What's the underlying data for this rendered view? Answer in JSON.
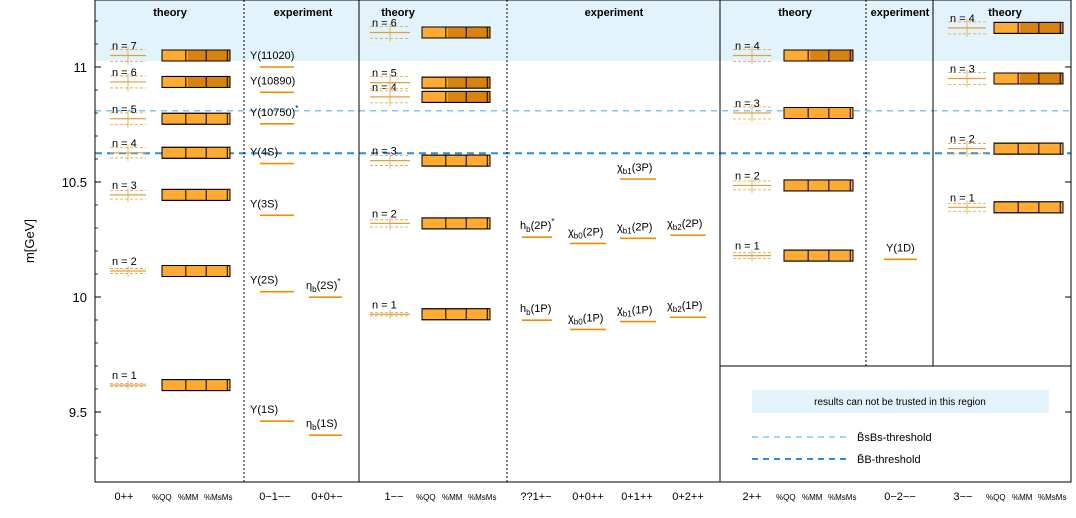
{
  "chart_data": {
    "type": "level-diagram",
    "ylabel": "m[GeV]",
    "ylim": [
      9.2,
      11.3
    ],
    "yticks": [
      9.5,
      10,
      10.5,
      11
    ],
    "untrusted_above": 11.03,
    "thresholds": [
      {
        "key": "bsbs",
        "value": 10.81,
        "label": "B̄sBs-threshold",
        "color": "#7cc7ef"
      },
      {
        "key": "bb",
        "value": 10.625,
        "label": "B̄B-threshold",
        "color": "#2a8fd8"
      }
    ],
    "legend": {
      "untrusted": "results can not be trusted in this region"
    },
    "colors": {
      "bar": "#ffaa33",
      "bar_dark": "#d8820f",
      "lattice": "#e0a040",
      "expt": "#f08c00",
      "band": "#e3f3fb",
      "ctag": "#f2ad42"
    },
    "section_titles": {
      "theory": "theory",
      "experiment": "experiment"
    },
    "columns": [
      {
        "key": "c0pp",
        "label": "0++",
        "tags": [
          "%QQ",
          "%MM",
          "%MsMs"
        ],
        "states": [
          {
            "label": "n = 1",
            "mass": 9.617
          },
          {
            "label": "n = 2",
            "mass": 10.113
          },
          {
            "label": "n = 3",
            "mass": 10.444
          },
          {
            "label": "n = 4",
            "mass": 10.627
          },
          {
            "label": "n = 5",
            "mass": 10.775
          },
          {
            "label": "n = 6",
            "mass": 10.935
          },
          {
            "label": "n = 7",
            "mass": 11.05
          }
        ]
      },
      {
        "key": "c0m1mm",
        "label": "0−1−−",
        "states": [
          {
            "label": "Υ(1S)",
            "mass": 9.46
          },
          {
            "label": "Υ(2S)",
            "mass": 10.023
          },
          {
            "label": "Υ(3S)",
            "mass": 10.355
          },
          {
            "label": "Υ(4S)",
            "mass": 10.58
          },
          {
            "label": "Υ(10750)*",
            "mass": 10.753
          },
          {
            "label": "Υ(10890)",
            "mass": 10.89
          },
          {
            "label": "Υ(11020)",
            "mass": 11.0
          }
        ]
      },
      {
        "key": "c0p0pm",
        "label": "0+0+−",
        "states": [
          {
            "label": "ηb(1S)",
            "mass": 9.399
          },
          {
            "label": "ηb(2S)*",
            "mass": 9.999
          }
        ]
      },
      {
        "key": "c1mm",
        "label": "1−−",
        "tags": [
          "%QQ",
          "%MM",
          "%MsMs"
        ],
        "states": [
          {
            "label": "n = 1",
            "mass": 9.925
          },
          {
            "label": "n = 2",
            "mass": 10.32
          },
          {
            "label": "n = 3",
            "mass": 10.593
          },
          {
            "label": "n = 4",
            "mass": 10.87
          },
          {
            "label": "n = 5",
            "mass": 10.932
          },
          {
            "label": "n = 6",
            "mass": 11.15
          }
        ]
      },
      {
        "key": "cq1pm",
        "label": "??1+−",
        "states": [
          {
            "label": "hb(1P)",
            "mass": 9.899
          },
          {
            "label": "hb(2P)*",
            "mass": 10.26
          }
        ]
      },
      {
        "key": "c0p0pp",
        "label": "0+0++",
        "states": [
          {
            "label": "χb0(1P)",
            "mass": 9.859
          },
          {
            "label": "χb0(2P)",
            "mass": 10.233
          }
        ]
      },
      {
        "key": "c0p1pp",
        "label": "0+1++",
        "states": [
          {
            "label": "χb1(1P)",
            "mass": 9.893
          },
          {
            "label": "χb1(2P)",
            "mass": 10.255
          },
          {
            "label": "χb1(3P)",
            "mass": 10.513
          }
        ]
      },
      {
        "key": "c0p2pp",
        "label": "0+2++",
        "states": [
          {
            "label": "χb2(1P)",
            "mass": 9.912
          },
          {
            "label": "χb2(2P)",
            "mass": 10.269
          }
        ]
      },
      {
        "key": "c2pp",
        "label": "2++",
        "tags": [
          "%QQ",
          "%MM",
          "%MsMs"
        ],
        "states": [
          {
            "label": "n = 1",
            "mass": 10.18
          },
          {
            "label": "n = 2",
            "mass": 10.485
          },
          {
            "label": "n = 3",
            "mass": 10.8
          },
          {
            "label": "n = 4",
            "mass": 11.05
          }
        ]
      },
      {
        "key": "c0m2mm",
        "label": "0−2−−",
        "states": [
          {
            "label": "Υ(1D)",
            "mass": 10.164
          }
        ]
      },
      {
        "key": "c3mm",
        "label": "3−−",
        "tags": [
          "%QQ",
          "%MM",
          "%MsMs"
        ],
        "states": [
          {
            "label": "n = 1",
            "mass": 10.39
          },
          {
            "label": "n = 2",
            "mass": 10.645
          },
          {
            "label": "n = 3",
            "mass": 10.95
          },
          {
            "label": "n = 4",
            "mass": 11.17
          }
        ]
      }
    ]
  }
}
